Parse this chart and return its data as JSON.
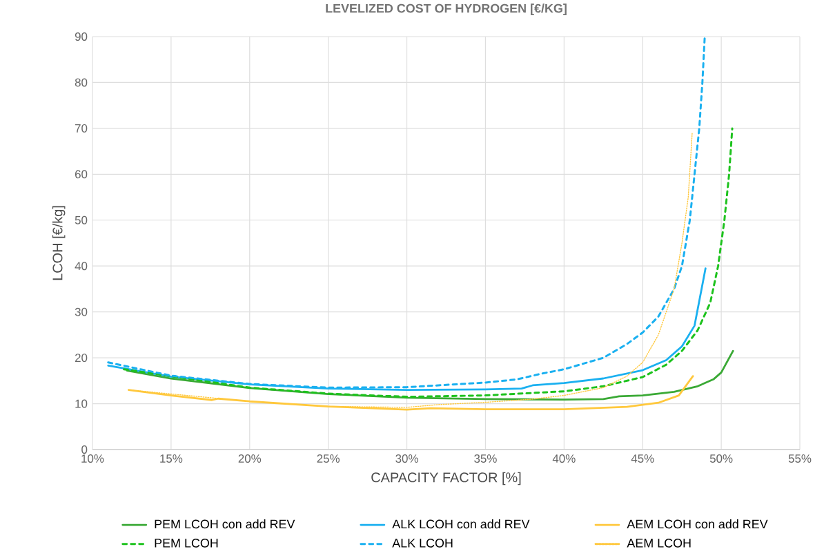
{
  "chart_data": {
    "type": "line",
    "title": "LEVELIZED COST OF HYDROGEN [€/KG]",
    "xlabel": "CAPACITY FACTOR [%]",
    "ylabel": "LCOH [€/kg]",
    "xlim": [
      10,
      55
    ],
    "ylim": [
      0,
      90
    ],
    "xticks": [
      {
        "value": 10,
        "label": "10%"
      },
      {
        "value": 15,
        "label": "15%"
      },
      {
        "value": 20,
        "label": "20%"
      },
      {
        "value": 25,
        "label": "25%"
      },
      {
        "value": 30,
        "label": "30%"
      },
      {
        "value": 35,
        "label": "35%"
      },
      {
        "value": 40,
        "label": "40%"
      },
      {
        "value": 45,
        "label": "45%"
      },
      {
        "value": 50,
        "label": "50%"
      },
      {
        "value": 55,
        "label": "55%"
      }
    ],
    "yticks": [
      0,
      10,
      20,
      30,
      40,
      50,
      60,
      70,
      80,
      90
    ],
    "grid": true,
    "legend": "bottom",
    "marker": "none",
    "series": [
      {
        "name": "PEM LCOH con add REV",
        "color": "#3aa935",
        "line_style": "solid",
        "x": [
          12.2,
          15,
          20,
          25,
          30,
          35,
          40,
          42.5,
          43.5,
          45,
          47,
          48.5,
          49.5,
          50,
          50.75
        ],
        "values": [
          17.2,
          15.5,
          13.4,
          12.1,
          11.3,
          11.0,
          10.9,
          11.0,
          11.6,
          11.8,
          12.6,
          13.8,
          15.3,
          16.8,
          21.5
        ]
      },
      {
        "name": "ALK LCOH con add REV",
        "color": "#1ab0f0",
        "line_style": "solid",
        "x": [
          11,
          15,
          20,
          25,
          30,
          35,
          37.3,
          38,
          40,
          42.5,
          45,
          46.5,
          47.5,
          48.3,
          49.0
        ],
        "values": [
          18.3,
          15.9,
          14.2,
          13.3,
          13.0,
          13.1,
          13.3,
          14.0,
          14.5,
          15.5,
          17.3,
          19.5,
          22.5,
          27,
          39.5
        ]
      },
      {
        "name": "AEM LCOH con add REV",
        "color": "#ffc83d",
        "line_style": "solid",
        "x": [
          12.3,
          15,
          17.6,
          18,
          20,
          25,
          30,
          31.5,
          35,
          40,
          44,
          46,
          47.3,
          48.2
        ],
        "values": [
          13.0,
          11.8,
          10.8,
          11.1,
          10.5,
          9.4,
          8.7,
          9.0,
          8.8,
          8.8,
          9.3,
          10.2,
          11.8,
          16.0
        ]
      },
      {
        "name": "PEM LCOH",
        "color": "#1dc21d",
        "line_style": "dashed",
        "x": [
          12,
          20,
          25,
          30,
          35,
          40,
          42.5,
          45,
          46.5,
          47.5,
          48.5,
          49.3,
          49.8,
          50.2,
          50.5,
          50.7
        ],
        "values": [
          17.5,
          13.5,
          12.2,
          11.5,
          11.8,
          12.7,
          13.8,
          15.8,
          18.5,
          21.5,
          26,
          32,
          40,
          50,
          60,
          70
        ]
      },
      {
        "name": "ALK LCOH",
        "color": "#1ab0f0",
        "line_style": "dashed",
        "x": [
          11,
          15,
          20,
          25,
          30,
          35,
          37,
          38.5,
          40,
          42.5,
          44,
          45,
          46,
          47,
          47.5,
          48,
          48.3,
          48.6,
          48.8,
          48.95
        ],
        "values": [
          19.0,
          16.1,
          14.3,
          13.5,
          13.6,
          14.6,
          15.3,
          16.5,
          17.5,
          20,
          23,
          25.5,
          29,
          35,
          40,
          50,
          60,
          70,
          80,
          90
        ]
      },
      {
        "name": "AEM LCOH",
        "color": "#ffc83d",
        "line_style": "dotted",
        "x": [
          12.3,
          20,
          25,
          30,
          32,
          35,
          38,
          40,
          42.5,
          44,
          45,
          46,
          47,
          47.5,
          47.9,
          48.15
        ],
        "values": [
          13.0,
          10.5,
          9.4,
          9.2,
          9.8,
          10.3,
          11,
          11.8,
          13.5,
          16,
          19,
          25,
          35,
          45,
          55,
          69
        ]
      }
    ]
  }
}
